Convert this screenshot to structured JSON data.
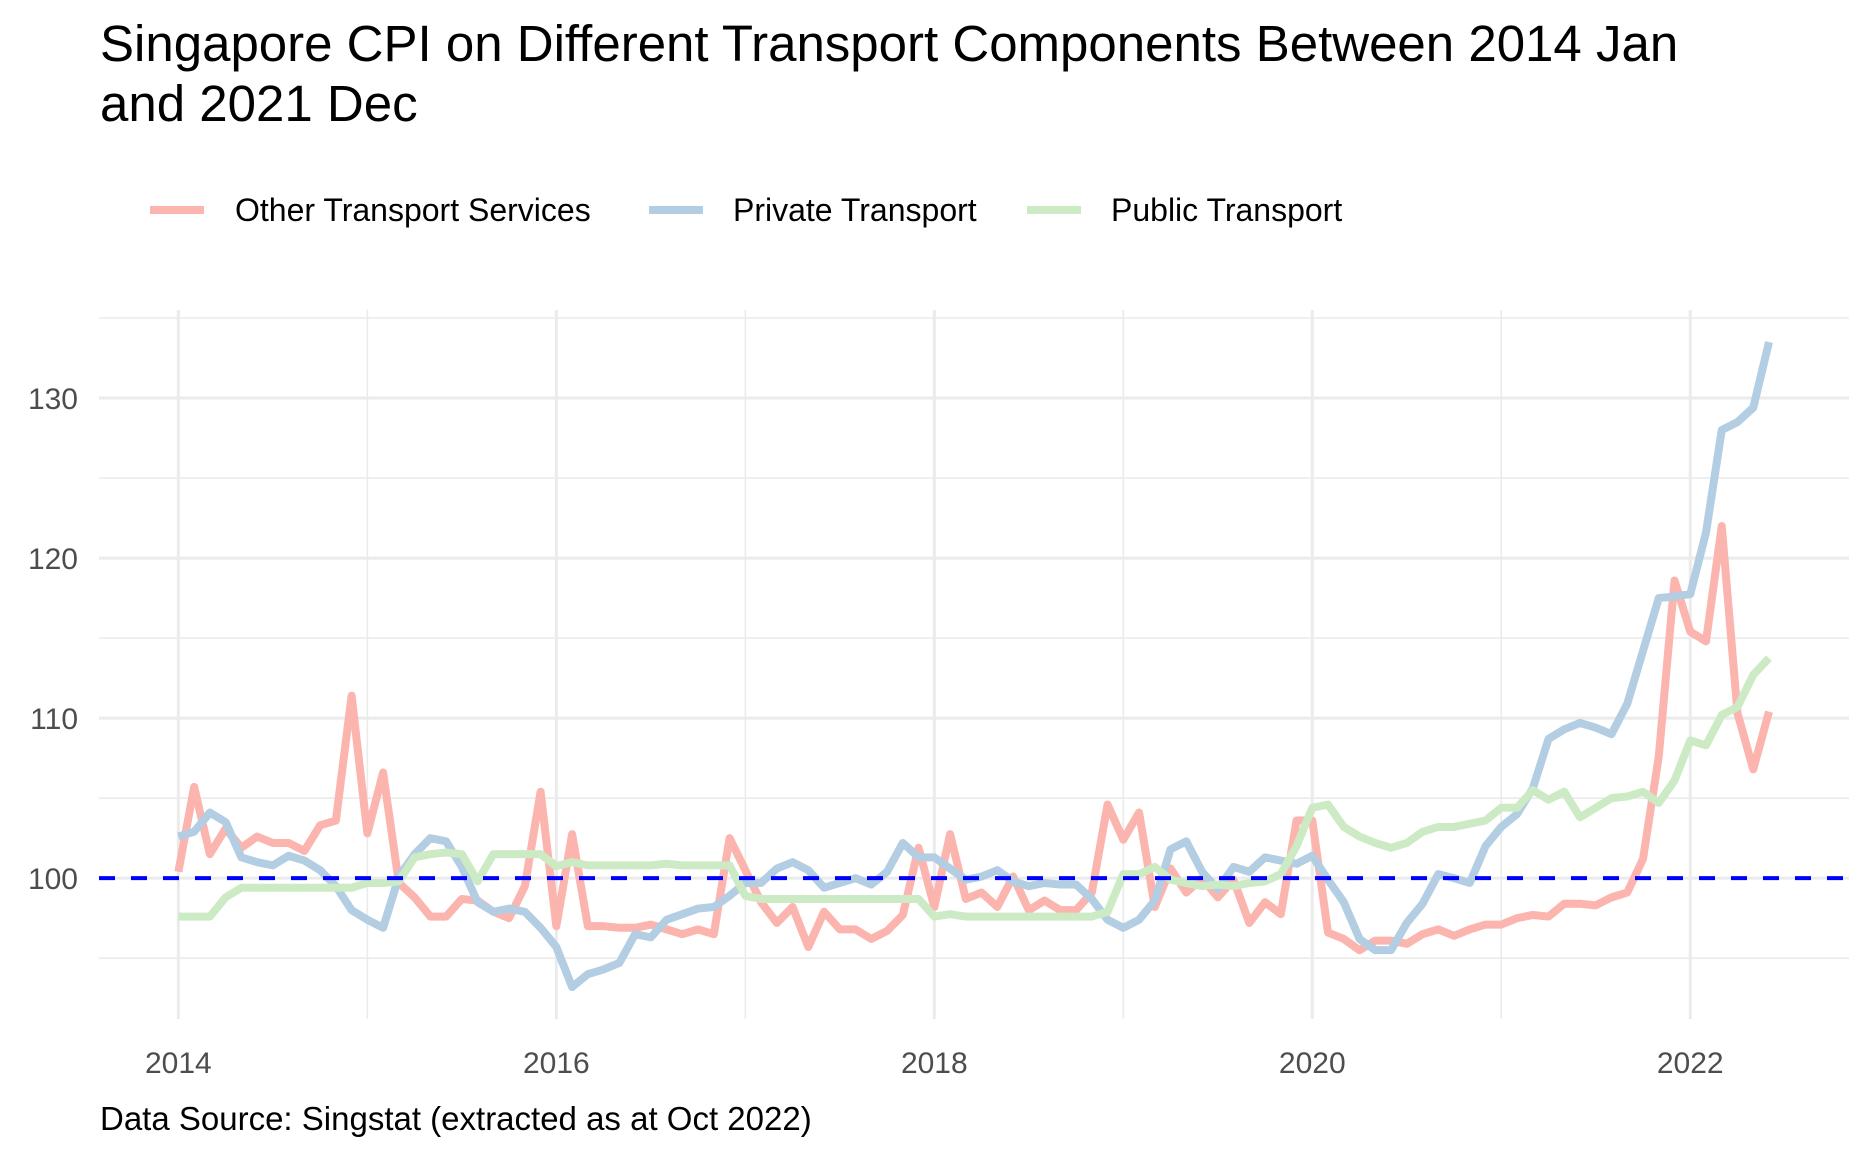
{
  "chart_data": {
    "type": "line",
    "title": "Singapore CPI on Different Transport Components Between 2014 Jan and 2021 Dec",
    "title_lines": [
      "Singapore CPI on Different Transport Components Between 2014 Jan",
      "and 2021 Dec"
    ],
    "caption": "Data Source: Singstat (extracted as at Oct 2022)",
    "xlabel": "",
    "ylabel": "",
    "x_start": "2014-01",
    "x_end": "2022-06",
    "x_frequency": "monthly",
    "xlim": [
      2013.58,
      2022.84
    ],
    "ylim": [
      91.2,
      135.5
    ],
    "x_ticks": [
      2014,
      2016,
      2018,
      2020,
      2022
    ],
    "x_tick_labels": [
      "2014",
      "2016",
      "2018",
      "2020",
      "2022"
    ],
    "x_minor_ticks": [
      2015,
      2017,
      2019,
      2021
    ],
    "y_ticks": [
      100,
      110,
      120,
      130
    ],
    "y_tick_labels": [
      "100",
      "110",
      "120",
      "130"
    ],
    "y_minor_ticks": [
      95,
      105,
      115,
      125,
      135
    ],
    "grid": true,
    "legend_position": "top-left",
    "reference_line": {
      "value": 100,
      "style": "dashed",
      "color": "#0000FF"
    },
    "series": [
      {
        "name": "Other Transport Services",
        "color": "#FBB4AE",
        "values": [
          100.4,
          105.7,
          101.5,
          103.1,
          101.9,
          102.6,
          102.2,
          102.2,
          101.7,
          103.3,
          103.6,
          111.4,
          102.8,
          106.6,
          99.7,
          98.8,
          97.6,
          97.6,
          98.7,
          98.6,
          97.9,
          97.5,
          99.5,
          105.4,
          97.0,
          102.75,
          97.0,
          97.0,
          96.9,
          96.9,
          97.1,
          96.8,
          96.5,
          96.8,
          96.5,
          102.5,
          100.5,
          98.5,
          97.2,
          98.2,
          95.7,
          97.9,
          96.8,
          96.8,
          96.2,
          96.7,
          97.7,
          101.9,
          98.2,
          102.75,
          98.7,
          99.1,
          98.2,
          100.1,
          98.0,
          98.6,
          98.0,
          98.0,
          99.1,
          104.6,
          102.4,
          104.1,
          98.2,
          100.6,
          99.1,
          100.0,
          98.8,
          99.9,
          97.2,
          98.5,
          97.75,
          103.6,
          103.6,
          96.6,
          96.2,
          95.5,
          96.1,
          96.1,
          95.9,
          96.5,
          96.8,
          96.4,
          96.8,
          97.1,
          97.1,
          97.5,
          97.7,
          97.6,
          98.4,
          98.4,
          98.3,
          98.8,
          99.1,
          101.2,
          107.6,
          118.6,
          115.4,
          114.8,
          122.0,
          110.3,
          106.8,
          110.4
        ]
      },
      {
        "name": "Private Transport",
        "color": "#B3CDE3",
        "values": [
          102.6,
          102.9,
          104.1,
          103.5,
          101.3,
          101.0,
          100.8,
          101.4,
          101.1,
          100.5,
          99.5,
          98.0,
          97.4,
          96.9,
          100.1,
          101.5,
          102.5,
          102.3,
          100.7,
          98.5,
          97.9,
          98.1,
          97.9,
          96.9,
          95.7,
          93.2,
          94.0,
          94.3,
          94.7,
          96.5,
          96.3,
          97.4,
          97.75,
          98.1,
          98.2,
          98.9,
          99.7,
          99.7,
          100.6,
          101.0,
          100.5,
          99.4,
          99.7,
          100.0,
          99.6,
          100.4,
          102.2,
          101.3,
          101.3,
          100.6,
          99.9,
          100.1,
          100.5,
          99.8,
          99.5,
          99.7,
          99.6,
          99.6,
          98.7,
          97.4,
          96.9,
          97.4,
          98.6,
          101.8,
          102.3,
          100.4,
          99.3,
          100.7,
          100.4,
          101.3,
          101.1,
          100.9,
          101.4,
          99.9,
          98.5,
          96.2,
          95.5,
          95.5,
          97.2,
          98.4,
          100.25,
          100.0,
          99.7,
          102.0,
          103.2,
          104.0,
          105.6,
          108.7,
          109.3,
          109.7,
          109.4,
          109.0,
          110.9,
          114.2,
          117.5,
          117.6,
          117.75,
          121.6,
          128.0,
          128.5,
          129.4,
          133.5
        ]
      },
      {
        "name": "Public Transport",
        "color": "#CCEBC5",
        "values": [
          97.6,
          97.6,
          97.6,
          98.8,
          99.4,
          99.4,
          99.4,
          99.4,
          99.4,
          99.4,
          99.4,
          99.4,
          99.7,
          99.7,
          99.8,
          101.3,
          101.5,
          101.6,
          101.5,
          99.8,
          101.5,
          101.5,
          101.5,
          101.5,
          100.75,
          101.0,
          100.8,
          100.8,
          100.8,
          100.8,
          100.8,
          100.9,
          100.8,
          100.8,
          100.8,
          100.8,
          98.9,
          98.7,
          98.7,
          98.7,
          98.7,
          98.7,
          98.7,
          98.7,
          98.7,
          98.7,
          98.7,
          98.7,
          97.6,
          97.75,
          97.6,
          97.6,
          97.6,
          97.6,
          97.6,
          97.6,
          97.6,
          97.6,
          97.6,
          97.9,
          100.25,
          100.25,
          100.7,
          99.9,
          99.7,
          99.5,
          99.6,
          99.5,
          99.7,
          99.8,
          100.25,
          102.0,
          104.4,
          104.6,
          103.2,
          102.6,
          102.2,
          101.9,
          102.2,
          102.9,
          103.2,
          103.2,
          103.4,
          103.6,
          104.4,
          104.4,
          105.5,
          104.9,
          105.4,
          103.8,
          104.4,
          105.0,
          105.1,
          105.4,
          104.7,
          106.1,
          108.6,
          108.3,
          110.2,
          110.7,
          112.7,
          113.75
        ]
      }
    ]
  }
}
